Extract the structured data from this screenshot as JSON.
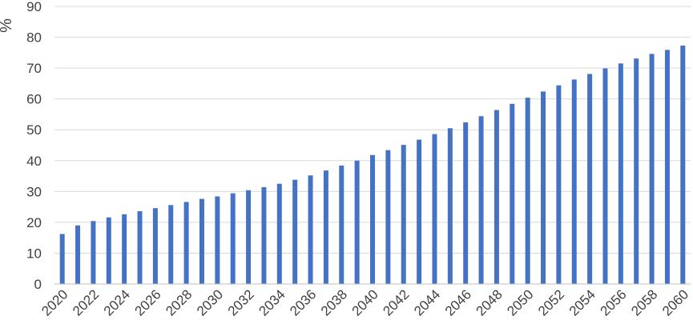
{
  "chart_data": {
    "type": "bar",
    "title": "",
    "xlabel": "",
    "ylabel": "%",
    "ylim": [
      0,
      90
    ],
    "yticks": [
      0,
      10,
      20,
      30,
      40,
      50,
      60,
      70,
      80,
      90
    ],
    "grid": true,
    "bar_color": "#4472c4",
    "categories": [
      "2020",
      "2021",
      "2022",
      "2023",
      "2024",
      "2025",
      "2026",
      "2027",
      "2028",
      "2029",
      "2030",
      "2031",
      "2032",
      "2033",
      "2034",
      "2035",
      "2036",
      "2037",
      "2038",
      "2039",
      "2040",
      "2041",
      "2042",
      "2043",
      "2044",
      "2045",
      "2046",
      "2047",
      "2048",
      "2049",
      "2050",
      "2051",
      "2052",
      "2053",
      "2054",
      "2055",
      "2056",
      "2057",
      "2058",
      "2059",
      "2060"
    ],
    "xtick_labels": [
      "2020",
      "2022",
      "2024",
      "2026",
      "2028",
      "2030",
      "2032",
      "2034",
      "2036",
      "2038",
      "2040",
      "2042",
      "2044",
      "2046",
      "2048",
      "2050",
      "2052",
      "2054",
      "2056",
      "2058",
      "2060"
    ],
    "values": [
      16.2,
      19.0,
      20.4,
      21.6,
      22.6,
      23.6,
      24.6,
      25.6,
      26.6,
      27.6,
      28.4,
      29.4,
      30.4,
      31.4,
      32.5,
      33.8,
      35.2,
      36.8,
      38.4,
      40.0,
      41.8,
      43.4,
      45.1,
      46.8,
      48.6,
      50.5,
      52.4,
      54.4,
      56.4,
      58.4,
      60.4,
      62.4,
      64.4,
      66.3,
      68.1,
      69.9,
      71.5,
      73.1,
      74.6,
      75.9,
      77.3
    ]
  }
}
